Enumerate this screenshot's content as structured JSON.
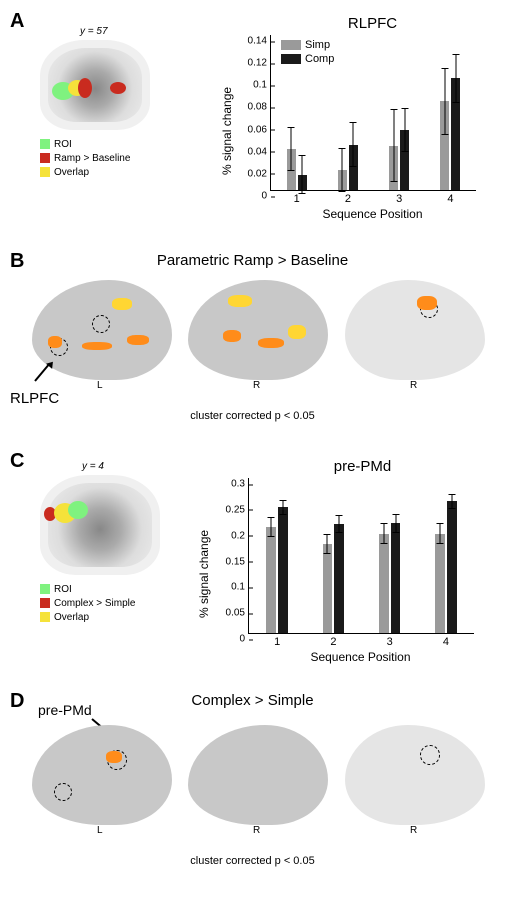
{
  "panels": {
    "A": "A",
    "B": "B",
    "C": "C",
    "D": "D"
  },
  "A": {
    "coronal_y": "y = 57",
    "legend": {
      "roi": "ROI",
      "ramp": "Ramp > Baseline",
      "overlap": "Overlap"
    },
    "colors": {
      "roi": "#7ff27f",
      "ramp": "#c92b1f",
      "overlap": "#f5e23a"
    },
    "chart": {
      "type": "bar",
      "title": "RLPFC",
      "ylabel": "% signal change",
      "xlabel": "Sequence Position",
      "categories": [
        "1",
        "2",
        "3",
        "4"
      ],
      "series": [
        {
          "name": "Simp",
          "color": "#9a9a9a",
          "values": [
            0.037,
            0.018,
            0.04,
            0.08
          ],
          "err": [
            0.02,
            0.02,
            0.033,
            0.03
          ]
        },
        {
          "name": "Comp",
          "color": "#1a1a1a",
          "values": [
            0.014,
            0.041,
            0.054,
            0.101
          ],
          "err": [
            0.018,
            0.02,
            0.02,
            0.022
          ]
        }
      ],
      "ylim": [
        0,
        0.14
      ],
      "yticks": [
        0,
        0.02,
        0.04,
        0.06,
        0.08,
        0.1,
        0.12,
        0.14
      ],
      "bar_width": 0.35,
      "background_color": "#ffffff"
    }
  },
  "B": {
    "title": "Parametric Ramp > Baseline",
    "caption": "cluster corrected p < 0.05",
    "rlpfc_label": "RLPFC",
    "brain_labels": {
      "left": "L",
      "right1": "R",
      "right2": "R"
    },
    "activation_color_hot": "#ff8c1a",
    "activation_color_hot2": "#ffd633"
  },
  "C": {
    "coronal_y": "y = 4",
    "legend": {
      "roi": "ROI",
      "complex": "Complex > Simple",
      "overlap": "Overlap"
    },
    "colors": {
      "roi": "#7ff27f",
      "complex": "#c92b1f",
      "overlap": "#f5e23a"
    },
    "chart": {
      "type": "bar",
      "title": "pre-PMd",
      "ylabel": "% signal change",
      "xlabel": "Sequence Position",
      "categories": [
        "1",
        "2",
        "3",
        "4"
      ],
      "series": [
        {
          "name": "Simp",
          "color": "#9a9a9a",
          "values": [
            0.205,
            0.172,
            0.192,
            0.192
          ],
          "err": [
            0.02,
            0.02,
            0.02,
            0.02
          ]
        },
        {
          "name": "Comp",
          "color": "#1a1a1a",
          "values": [
            0.243,
            0.211,
            0.212,
            0.255
          ],
          "err": [
            0.015,
            0.018,
            0.018,
            0.015
          ]
        }
      ],
      "ylim": [
        0,
        0.3
      ],
      "yticks": [
        0,
        0.05,
        0.1,
        0.15,
        0.2,
        0.25,
        0.3
      ],
      "bar_width": 0.35,
      "background_color": "#ffffff"
    }
  },
  "D": {
    "title": "Complex > Simple",
    "caption": "cluster corrected p < 0.05",
    "prepmd_label": "pre-PMd",
    "brain_labels": {
      "left": "L",
      "right1": "R",
      "right2": "R"
    },
    "activation_color_hot": "#ff8c1a"
  }
}
